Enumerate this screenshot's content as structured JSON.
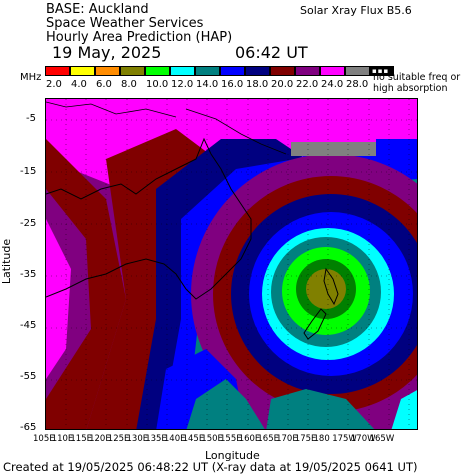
{
  "header": {
    "base": "BASE: Auckland",
    "org": "Space Weather Services",
    "product": "Hourly Area Prediction (HAP)",
    "flux": "Solar Xray Flux B5.6",
    "date": "19 May, 2025",
    "time": "06:42 UT"
  },
  "legend": {
    "unit": "MHz",
    "colors": [
      "#ff0000",
      "#ffff00",
      "#ff8c00",
      "#808000",
      "#00ff00",
      "#00ffff",
      "#008080",
      "#0000ff",
      "#000080",
      "#800000",
      "#800080",
      "#ff00ff",
      "#808080"
    ],
    "labels": [
      "2.0",
      "4.0",
      "6.0",
      "8.0",
      "10.0",
      "12.0",
      "14.0",
      "16.0",
      "18.0",
      "20.0",
      "22.0",
      "24.0",
      "28.0"
    ],
    "note_line1": "no suitable freq or",
    "note_line2": "high absorption"
  },
  "axes": {
    "ylabel": "Latitude",
    "xlabel": "Longitude",
    "lat_ticks": [
      "-5",
      "-15",
      "-25",
      "-35",
      "-45",
      "-55",
      "-65"
    ],
    "lon_ticks": [
      "105E",
      "110E",
      "115E",
      "120E",
      "125E",
      "130E",
      "135E",
      "140E",
      "145E",
      "150E",
      "155E",
      "160E",
      "165E",
      "170E",
      "175E",
      "180",
      "175W",
      "170W",
      "165W"
    ]
  },
  "footer": {
    "created": "Created at 19/05/2025 06:48:22 UT (X-ray data at 19/05/2025 0641 UT)"
  }
}
